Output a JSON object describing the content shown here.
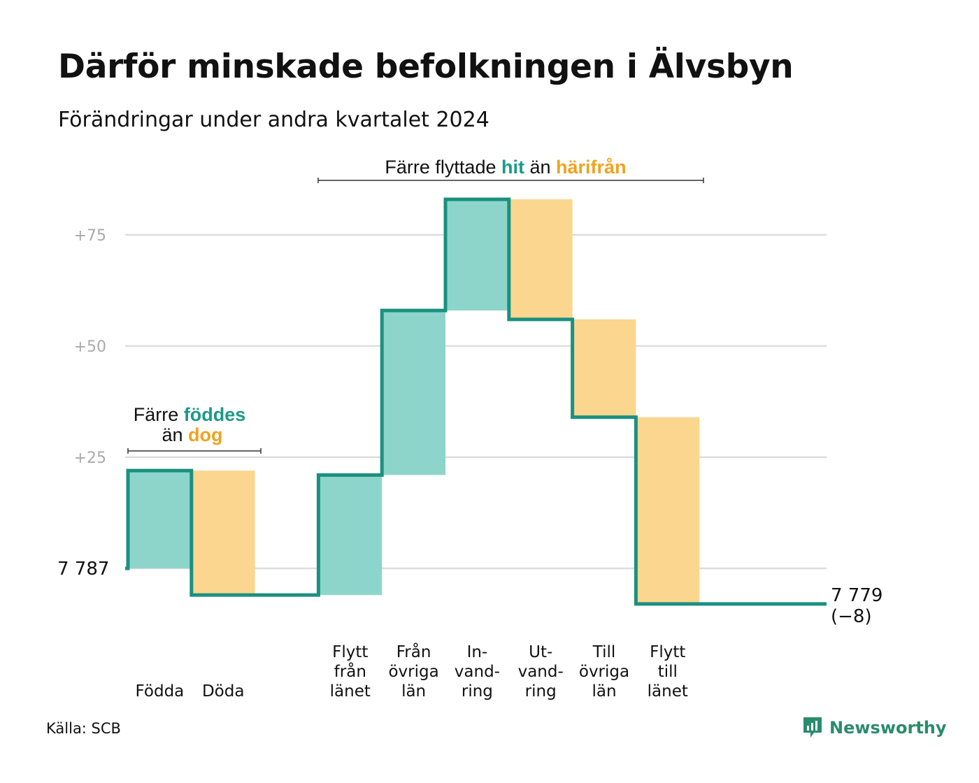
{
  "header": {
    "title": "Därför minskade befolkningen i Älvsbyn",
    "subtitle": "Förändringar under andra kvartalet 2024"
  },
  "footer": {
    "source": "Källa: SCB",
    "brand": "Newsworthy"
  },
  "colors": {
    "inflow": "#8dd5cb",
    "outflow": "#fbd68f",
    "line": "#1b9080",
    "grid": "#dddddd",
    "teal_text": "#1b9a8a",
    "orange_text": "#f0a31f",
    "brand": "#2a8c6a"
  },
  "annotations": {
    "births_deaths": {
      "line1_pre": "Färre ",
      "line1_hl": "föddes",
      "line2_pre": "än ",
      "line2_hl": "dog"
    },
    "migration": {
      "pre": "Färre flyttade ",
      "hl1": "hit",
      "mid": " än ",
      "hl2": "härifrån"
    }
  },
  "chart_data": {
    "type": "waterfall",
    "start_label": "7 787",
    "end_label_line1": "7 779",
    "end_label_line2": "(−8)",
    "yticks": [
      {
        "value": 25,
        "label": "+25"
      },
      {
        "value": 50,
        "label": "+50"
      },
      {
        "value": 75,
        "label": "+75"
      }
    ],
    "ylim": [
      -10,
      85
    ],
    "steps": [
      {
        "name": "fodda",
        "label_lines": [
          "Födda"
        ],
        "from": 0,
        "to": 22,
        "kind": "inflow"
      },
      {
        "name": "doda",
        "label_lines": [
          "Döda"
        ],
        "from": 22,
        "to": -6,
        "kind": "outflow"
      },
      {
        "name": "gap",
        "label_lines": [],
        "from": -6,
        "to": -6,
        "kind": "none"
      },
      {
        "name": "flytt-fran-lanet",
        "label_lines": [
          "Flytt",
          "från",
          "länet"
        ],
        "from": -6,
        "to": 21,
        "kind": "inflow"
      },
      {
        "name": "fran-ovriga-lan",
        "label_lines": [
          "Från",
          "övriga",
          "län"
        ],
        "from": 21,
        "to": 58,
        "kind": "inflow"
      },
      {
        "name": "invandring",
        "label_lines": [
          "In-",
          "vand-",
          "ring"
        ],
        "from": 58,
        "to": 83,
        "kind": "inflow"
      },
      {
        "name": "utvandring",
        "label_lines": [
          "Ut-",
          "vand-",
          "ring"
        ],
        "from": 83,
        "to": 56,
        "kind": "outflow"
      },
      {
        "name": "till-ovriga-lan",
        "label_lines": [
          "Till",
          "övriga",
          "län"
        ],
        "from": 56,
        "to": 34,
        "kind": "outflow"
      },
      {
        "name": "flytt-till-lanet",
        "label_lines": [
          "Flytt",
          "till",
          "länet"
        ],
        "from": 34,
        "to": -8,
        "kind": "outflow"
      }
    ],
    "end_value": -8
  }
}
